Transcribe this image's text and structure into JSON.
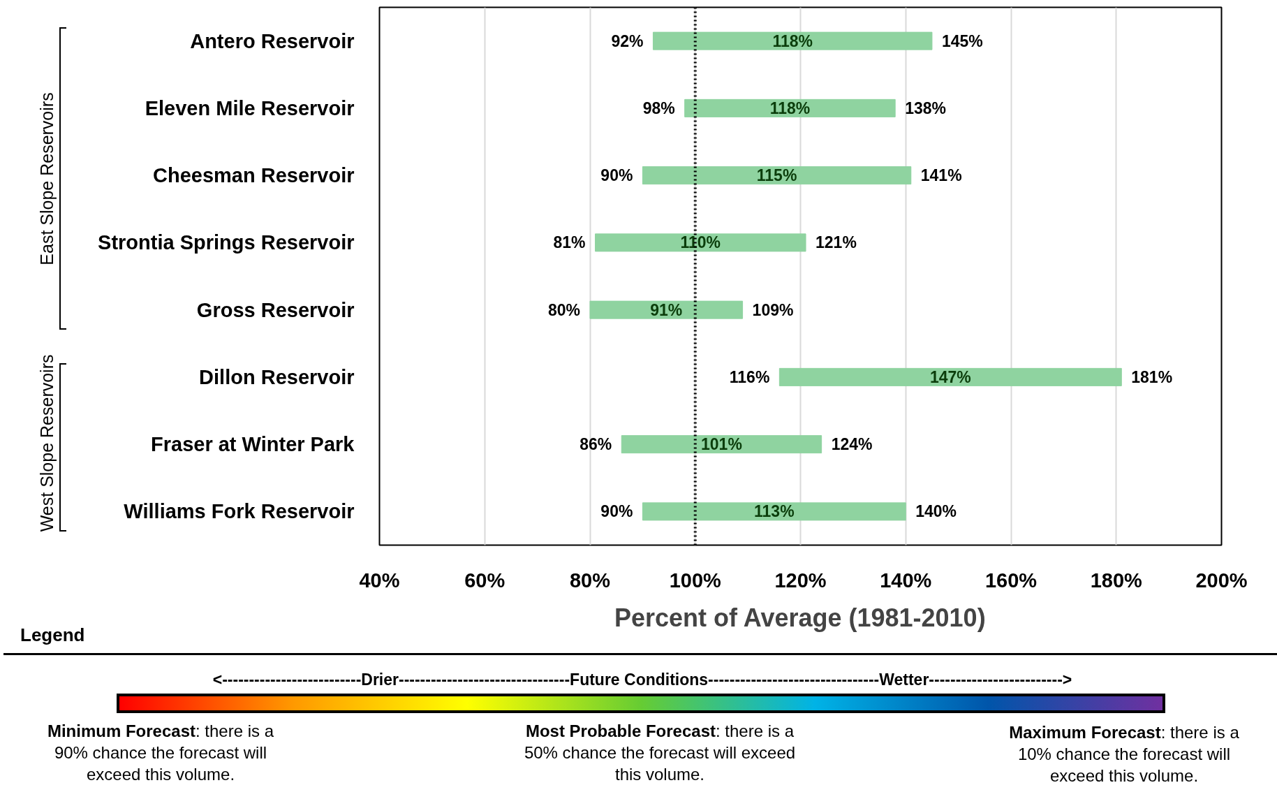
{
  "chart_data": {
    "type": "bar",
    "orientation": "horizontal",
    "categories": [
      "Antero Reservoir",
      "Eleven Mile Reservoir",
      "Cheesman Reservoir",
      "Strontia Springs Reservoir",
      "Gross Reservoir",
      "Dillon Reservoir",
      "Fraser at Winter Park",
      "Williams Fork Reservoir"
    ],
    "base": [
      92,
      98,
      90,
      81,
      80,
      116,
      86,
      90
    ],
    "values": [
      53,
      40,
      51,
      40,
      29,
      65,
      38,
      50
    ],
    "color": "#8fd3a0",
    "xlim": [
      40,
      200
    ],
    "xticks": [
      {
        "value": 40,
        "label": "40%"
      },
      {
        "value": 60,
        "label": "60%"
      },
      {
        "value": 80,
        "label": "80%"
      },
      {
        "value": 100,
        "label": "100%"
      },
      {
        "value": 120,
        "label": "120%"
      },
      {
        "value": 140,
        "label": "140%"
      },
      {
        "value": 160,
        "label": "160%"
      },
      {
        "value": 180,
        "label": "180%"
      },
      {
        "value": 200,
        "label": "200%"
      }
    ],
    "xlabel": "Percent of Average (1981-2010)",
    "grid": "x",
    "ref_lines": [
      {
        "axis": "x",
        "value": 100,
        "line_style": "dotted",
        "color": "#000000"
      }
    ],
    "annotations": [
      {
        "text": "92%",
        "x": 92,
        "y": "Antero Reservoir"
      },
      {
        "text": "145%",
        "x": 145,
        "y": "Antero Reservoir"
      },
      {
        "text": "98%",
        "x": 98,
        "y": "Eleven Mile Reservoir"
      },
      {
        "text": "138%",
        "x": 138,
        "y": "Eleven Mile Reservoir"
      },
      {
        "text": "90%",
        "x": 90,
        "y": "Cheesman Reservoir"
      },
      {
        "text": "141%",
        "x": 141,
        "y": "Cheesman Reservoir"
      },
      {
        "text": "81%",
        "x": 81,
        "y": "Strontia Springs Reservoir"
      },
      {
        "text": "121%",
        "x": 121,
        "y": "Strontia Springs Reservoir"
      },
      {
        "text": "80%",
        "x": 80,
        "y": "Gross Reservoir"
      },
      {
        "text": "109%",
        "x": 109,
        "y": "Gross Reservoir"
      },
      {
        "text": "116%",
        "x": 116,
        "y": "Dillon Reservoir"
      },
      {
        "text": "181%",
        "x": 181,
        "y": "Dillon Reservoir"
      },
      {
        "text": "86%",
        "x": 86,
        "y": "Fraser at Winter Park"
      },
      {
        "text": "124%",
        "x": 124,
        "y": "Fraser at Winter Park"
      },
      {
        "text": "90%",
        "x": 90,
        "y": "Williams Fork Reservoir"
      },
      {
        "text": "140%",
        "x": 140,
        "y": "Williams Fork Reservoir"
      },
      "118%",
      "118%",
      "115%",
      "110%",
      "91%",
      "147%",
      "101%",
      "113%",
      "East Slope Reservoirs",
      "West Slope Reservoirs",
      "Legend",
      "<--------------------------Drier--------------------------------Future Conditions--------------------------------Wetter------------------------->",
      "Minimum Forecast: there is a 90% chance the forecast will exceed this volume.",
      "Most Probable Forecast: there is a 50% chance the forecast will exceed this volume.",
      "Maximum Forecast: there is a 10% chance the forecast will exceed this volume."
    ]
  }
}
